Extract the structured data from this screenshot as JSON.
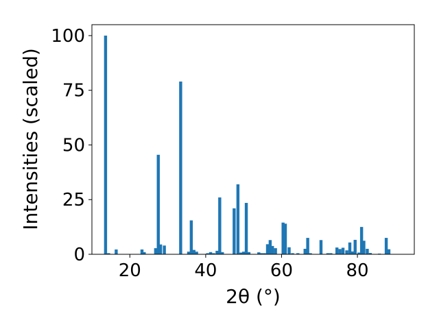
{
  "chart_data": {
    "type": "bar",
    "xlabel": "2θ (°)",
    "ylabel": "Intensities (scaled)",
    "xlim": [
      10,
      95
    ],
    "ylim": [
      0,
      105
    ],
    "x_ticks": [
      20,
      40,
      60,
      80
    ],
    "y_ticks": [
      0,
      25,
      50,
      75,
      100
    ],
    "x_tick_labels": [
      "20",
      "40",
      "60",
      "80"
    ],
    "y_tick_labels": [
      "0",
      "25",
      "50",
      "75",
      "100"
    ],
    "grid": false,
    "legend": "none",
    "bar_color": "#1f77b4",
    "bar_width": 0.8,
    "x": [
      13.6,
      14.4,
      16.4,
      23.2,
      23.8,
      26.8,
      27.5,
      28.1,
      29.1,
      33.4,
      35.5,
      36.2,
      36.9,
      37.6,
      40.5,
      41.3,
      42.1,
      43.0,
      43.7,
      44.4,
      47.5,
      48.5,
      49.3,
      50.0,
      50.7,
      51.4,
      54.0,
      54.7,
      55.5,
      56.3,
      57.0,
      57.6,
      58.4,
      60.4,
      61.0,
      62.0,
      62.9,
      64.3,
      66.2,
      66.9,
      67.6,
      70.4,
      72.2,
      73.0,
      74.6,
      75.4,
      76.2,
      77.2,
      78.0,
      78.6,
      79.4,
      80.4,
      81.1,
      81.7,
      82.6,
      83.4,
      85.8,
      87.6,
      88.3
    ],
    "values": [
      100,
      0.5,
      2.2,
      2.2,
      1,
      2.8,
      45.5,
      4.5,
      4,
      79,
      1.2,
      15.5,
      2,
      1.2,
      0.5,
      1,
      0.5,
      1.6,
      26,
      1,
      21,
      32,
      0.8,
      1.2,
      23.5,
      1,
      0.9,
      0.5,
      0.5,
      4.6,
      6.5,
      3.8,
      2.8,
      14.5,
      14,
      3.2,
      0.5,
      0.5,
      2.5,
      7.5,
      0.5,
      6.5,
      0.5,
      0.5,
      3.1,
      2.4,
      3,
      1.8,
      5.4,
      1.3,
      6.6,
      0.8,
      12.5,
      6.2,
      2.5,
      0.6,
      0.3,
      7.5,
      2.3
    ]
  }
}
